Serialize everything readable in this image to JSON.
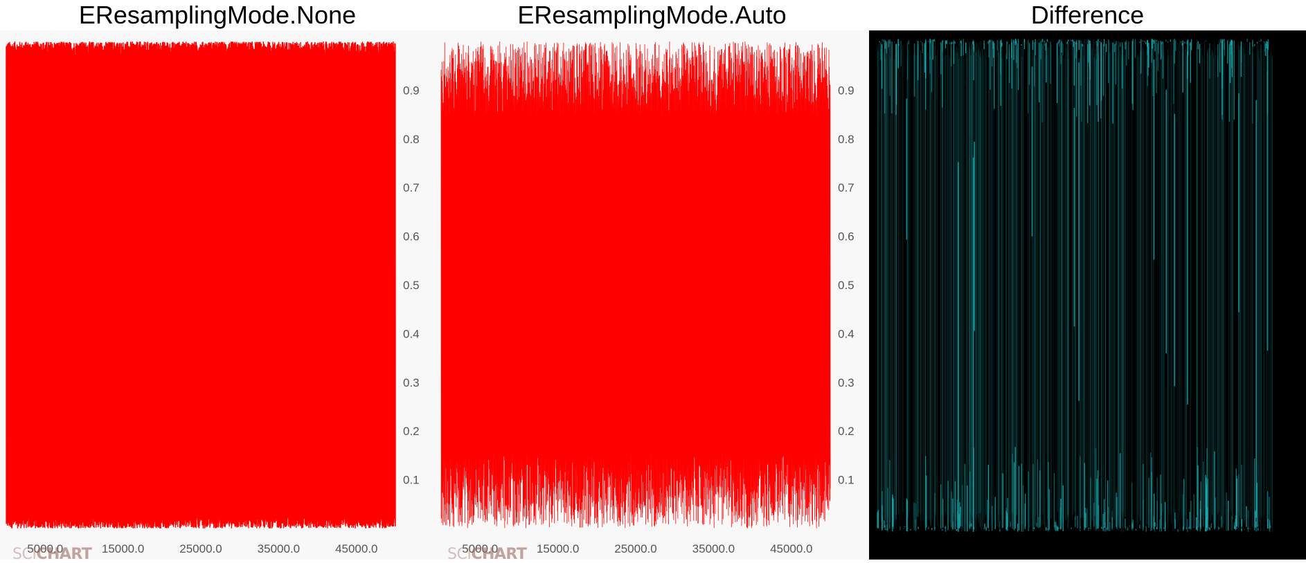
{
  "panels": [
    {
      "title": "EResamplingMode.None"
    },
    {
      "title": "EResamplingMode.Auto"
    },
    {
      "title": "Difference"
    }
  ],
  "watermark": {
    "prefix": "SCI",
    "brand": "CHART"
  },
  "colors": {
    "series": "#ff0000",
    "difference": "#19b3b8",
    "chart_background": "#f8f8f8",
    "difference_background": "#000000"
  },
  "chart_data": [
    {
      "type": "line",
      "title": "EResamplingMode.None",
      "series_color": "#ff0000",
      "x_range": [
        0,
        50000
      ],
      "y_range": [
        0,
        1
      ],
      "x_ticks": [
        5000,
        15000,
        25000,
        35000,
        45000
      ],
      "x_tick_labels": [
        "5000.0",
        "15000.0",
        "25000.0",
        "35000.0",
        "45000.0"
      ],
      "y_ticks": [
        0.1,
        0.2,
        0.3,
        0.4,
        0.5,
        0.6,
        0.7,
        0.8,
        0.9
      ],
      "y_tick_labels": [
        "0.1",
        "0.2",
        "0.3",
        "0.4",
        "0.5",
        "0.6",
        "0.7",
        "0.8",
        "0.9"
      ],
      "y_axis_side": "right",
      "x_axis_side": "bottom",
      "grid": false,
      "series_summary": {
        "points": 50000,
        "min": 0.0,
        "max": 1.0,
        "distribution": "uniform random"
      }
    },
    {
      "type": "line",
      "title": "EResamplingMode.Auto",
      "series_color": "#ff0000",
      "x_range": [
        0,
        50000
      ],
      "y_range": [
        0,
        1
      ],
      "x_ticks": [
        5000,
        15000,
        25000,
        35000,
        45000
      ],
      "x_tick_labels": [
        "5000.0",
        "15000.0",
        "25000.0",
        "35000.0",
        "45000.0"
      ],
      "y_ticks": [
        0.1,
        0.2,
        0.3,
        0.4,
        0.5,
        0.6,
        0.7,
        0.8,
        0.9
      ],
      "y_tick_labels": [
        "0.1",
        "0.2",
        "0.3",
        "0.4",
        "0.5",
        "0.6",
        "0.7",
        "0.8",
        "0.9"
      ],
      "y_axis_side": "right",
      "x_axis_side": "bottom",
      "grid": false,
      "series_summary": {
        "points": 50000,
        "min": 0.0,
        "max": 1.0,
        "distribution": "uniform random"
      }
    },
    {
      "type": "heatmap",
      "title": "Difference",
      "series_color": "#19b3b8",
      "background": "#000000",
      "axes": false
    }
  ]
}
